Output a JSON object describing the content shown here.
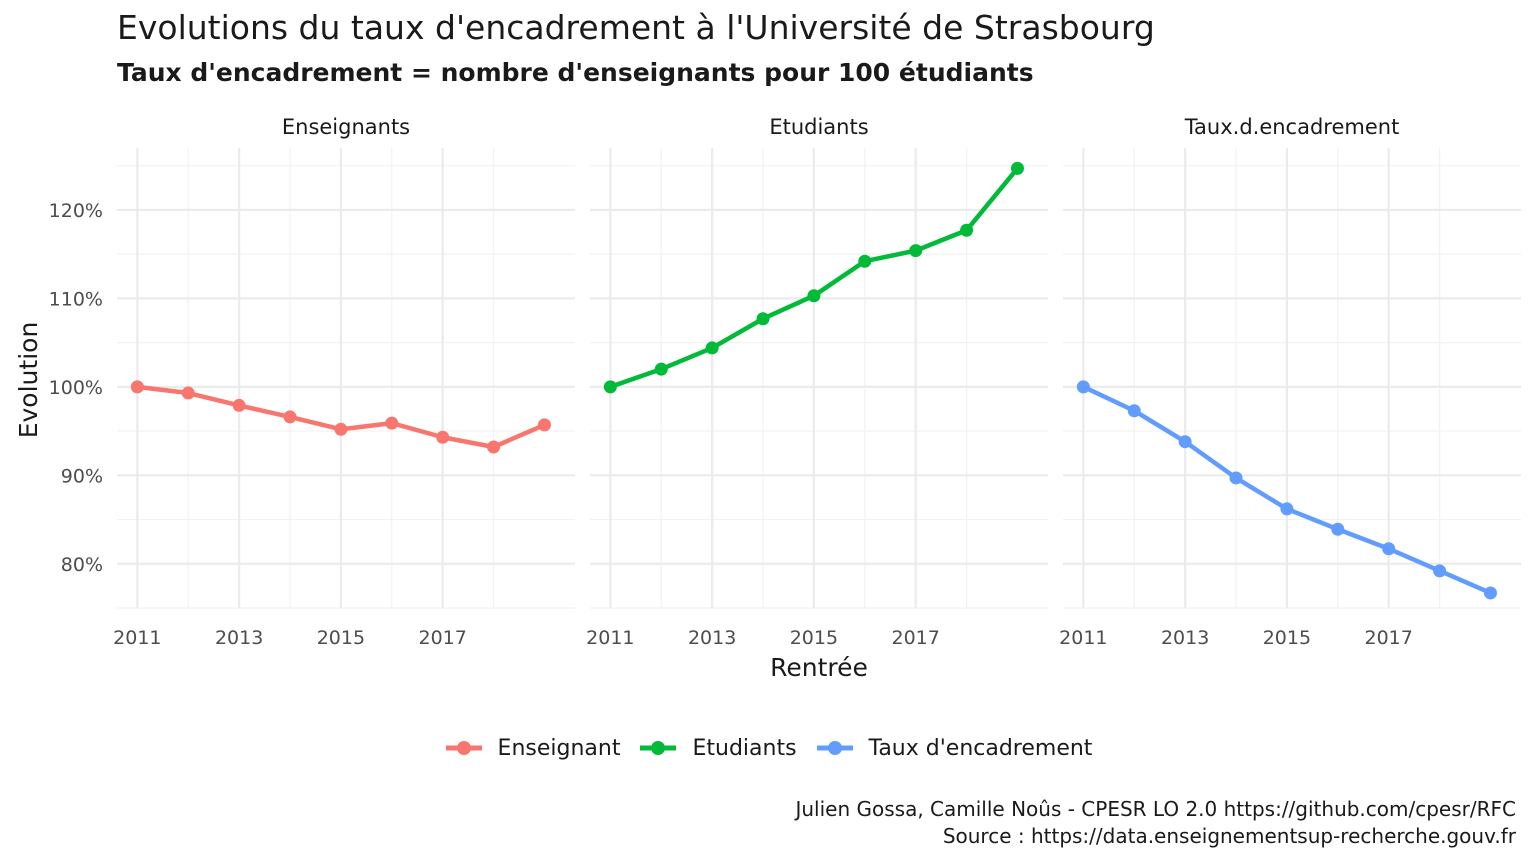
{
  "chart_data": {
    "type": "line",
    "title": "Evolutions du taux d'encadrement à l'Université de Strasbourg",
    "subtitle": "Taux d'encadrement = nombre d'enseignants pour 100 étudiants",
    "xlabel": "Rentrée",
    "ylabel": "Evolution",
    "x_ticks": [
      2011,
      2013,
      2015,
      2017
    ],
    "x_tick_labels": [
      "2011",
      "2013",
      "2015",
      "2017"
    ],
    "y_ticks": [
      0.8,
      0.9,
      1.0,
      1.1,
      1.2
    ],
    "y_tick_labels": [
      "80%",
      "90%",
      "100%",
      "110%",
      "120%"
    ],
    "xlim": [
      2010.6,
      2019.6
    ],
    "ylim": [
      0.75,
      1.27
    ],
    "grid": true,
    "legend_position": "bottom",
    "x": [
      2011,
      2012,
      2013,
      2014,
      2015,
      2016,
      2017,
      2018,
      2019
    ],
    "panels": [
      {
        "strip": "Enseignants",
        "series": [
          {
            "name": "Enseignant",
            "color": "#F8766D",
            "values": [
              1.0,
              0.993,
              0.979,
              0.966,
              0.952,
              0.959,
              0.943,
              0.932,
              0.957
            ]
          }
        ]
      },
      {
        "strip": "Etudiants",
        "series": [
          {
            "name": "Etudiants",
            "color": "#00BA38",
            "values": [
              1.0,
              1.02,
              1.044,
              1.077,
              1.103,
              1.142,
              1.154,
              1.177,
              1.247
            ]
          }
        ]
      },
      {
        "strip": "Taux.d.encadrement",
        "series": [
          {
            "name": "Taux d'encadrement",
            "color": "#619CFF",
            "values": [
              1.0,
              0.973,
              0.938,
              0.897,
              0.862,
              0.839,
              0.817,
              0.792,
              0.767
            ]
          }
        ]
      }
    ],
    "legend": [
      {
        "name": "Enseignant",
        "color": "#F8766D"
      },
      {
        "name": "Etudiants",
        "color": "#00BA38"
      },
      {
        "name": "Taux d'encadrement",
        "color": "#619CFF"
      }
    ]
  },
  "caption": {
    "line1": "Julien Gossa, Camille Noûs - CPESR LO 2.0 https://github.com/cpesr/RFC",
    "line2": "Source : https://data.enseignementsup-recherche.gouv.fr"
  }
}
